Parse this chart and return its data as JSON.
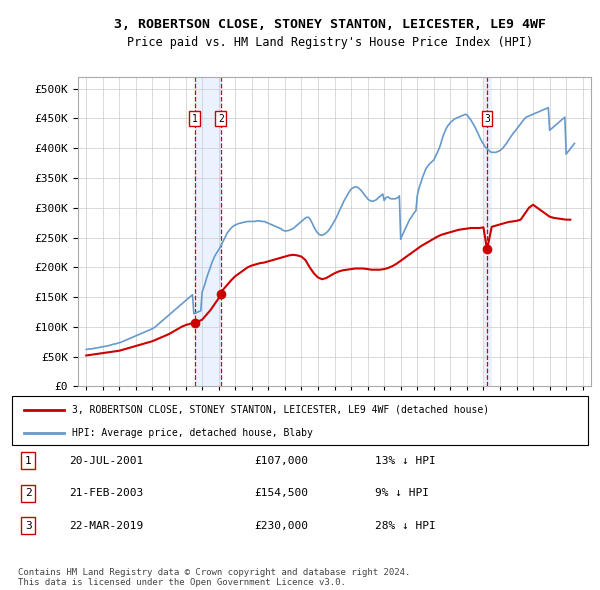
{
  "title": "3, ROBERTSON CLOSE, STONEY STANTON, LEICESTER, LE9 4WF",
  "subtitle": "Price paid vs. HM Land Registry's House Price Index (HPI)",
  "legend_line1": "3, ROBERTSON CLOSE, STONEY STANTON, LEICESTER, LE9 4WF (detached house)",
  "legend_line2": "HPI: Average price, detached house, Blaby",
  "footnote": "Contains HM Land Registry data © Crown copyright and database right 2024.\nThis data is licensed under the Open Government Licence v3.0.",
  "transactions": [
    {
      "num": 1,
      "date": "20-JUL-2001",
      "price": 107000,
      "hpi_diff": "13% ↓ HPI",
      "year": 2001.55
    },
    {
      "num": 2,
      "date": "21-FEB-2003",
      "price": 154500,
      "hpi_diff": "9% ↓ HPI",
      "year": 2003.13
    },
    {
      "num": 3,
      "date": "22-MAR-2019",
      "price": 230000,
      "hpi_diff": "28% ↓ HPI",
      "year": 2019.22
    }
  ],
  "hpi_color": "#6699cc",
  "price_color": "#cc0000",
  "vline_color": "#cc0000",
  "highlight_color": "#cce0ff",
  "grid_color": "#cccccc",
  "bg_color": "#ffffff",
  "ylim": [
    0,
    520000
  ],
  "yticks": [
    0,
    50000,
    100000,
    150000,
    200000,
    250000,
    300000,
    350000,
    400000,
    450000,
    500000
  ],
  "xlim_start": 1994.5,
  "xlim_end": 2025.5,
  "xticks": [
    1995,
    1996,
    1997,
    1998,
    1999,
    2000,
    2001,
    2002,
    2003,
    2004,
    2005,
    2006,
    2007,
    2008,
    2009,
    2010,
    2011,
    2012,
    2013,
    2014,
    2015,
    2016,
    2017,
    2018,
    2019,
    2020,
    2021,
    2022,
    2023,
    2024,
    2025
  ],
  "hpi_years": [
    1995.0,
    1995.08,
    1995.17,
    1995.25,
    1995.33,
    1995.42,
    1995.5,
    1995.58,
    1995.67,
    1995.75,
    1995.83,
    1995.92,
    1996.0,
    1996.08,
    1996.17,
    1996.25,
    1996.33,
    1996.42,
    1996.5,
    1996.58,
    1996.67,
    1996.75,
    1996.83,
    1996.92,
    1997.0,
    1997.08,
    1997.17,
    1997.25,
    1997.33,
    1997.42,
    1997.5,
    1997.58,
    1997.67,
    1997.75,
    1997.83,
    1997.92,
    1998.0,
    1998.08,
    1998.17,
    1998.25,
    1998.33,
    1998.42,
    1998.5,
    1998.58,
    1998.67,
    1998.75,
    1998.83,
    1998.92,
    1999.0,
    1999.08,
    1999.17,
    1999.25,
    1999.33,
    1999.42,
    1999.5,
    1999.58,
    1999.67,
    1999.75,
    1999.83,
    1999.92,
    2000.0,
    2000.08,
    2000.17,
    2000.25,
    2000.33,
    2000.42,
    2000.5,
    2000.58,
    2000.67,
    2000.75,
    2000.83,
    2000.92,
    2001.0,
    2001.08,
    2001.17,
    2001.25,
    2001.33,
    2001.42,
    2001.5,
    2001.58,
    2001.67,
    2001.75,
    2001.83,
    2001.92,
    2002.0,
    2002.08,
    2002.17,
    2002.25,
    2002.33,
    2002.42,
    2002.5,
    2002.58,
    2002.67,
    2002.75,
    2002.83,
    2002.92,
    2003.0,
    2003.08,
    2003.17,
    2003.25,
    2003.33,
    2003.42,
    2003.5,
    2003.58,
    2003.67,
    2003.75,
    2003.83,
    2003.92,
    2004.0,
    2004.08,
    2004.17,
    2004.25,
    2004.33,
    2004.42,
    2004.5,
    2004.58,
    2004.67,
    2004.75,
    2004.83,
    2004.92,
    2005.0,
    2005.08,
    2005.17,
    2005.25,
    2005.33,
    2005.42,
    2005.5,
    2005.58,
    2005.67,
    2005.75,
    2005.83,
    2005.92,
    2006.0,
    2006.08,
    2006.17,
    2006.25,
    2006.33,
    2006.42,
    2006.5,
    2006.58,
    2006.67,
    2006.75,
    2006.83,
    2006.92,
    2007.0,
    2007.08,
    2007.17,
    2007.25,
    2007.33,
    2007.42,
    2007.5,
    2007.58,
    2007.67,
    2007.75,
    2007.83,
    2007.92,
    2008.0,
    2008.08,
    2008.17,
    2008.25,
    2008.33,
    2008.42,
    2008.5,
    2008.58,
    2008.67,
    2008.75,
    2008.83,
    2008.92,
    2009.0,
    2009.08,
    2009.17,
    2009.25,
    2009.33,
    2009.42,
    2009.5,
    2009.58,
    2009.67,
    2009.75,
    2009.83,
    2009.92,
    2010.0,
    2010.08,
    2010.17,
    2010.25,
    2010.33,
    2010.42,
    2010.5,
    2010.58,
    2010.67,
    2010.75,
    2010.83,
    2010.92,
    2011.0,
    2011.08,
    2011.17,
    2011.25,
    2011.33,
    2011.42,
    2011.5,
    2011.58,
    2011.67,
    2011.75,
    2011.83,
    2011.92,
    2012.0,
    2012.08,
    2012.17,
    2012.25,
    2012.33,
    2012.42,
    2012.5,
    2012.58,
    2012.67,
    2012.75,
    2012.83,
    2012.92,
    2013.0,
    2013.08,
    2013.17,
    2013.25,
    2013.33,
    2013.42,
    2013.5,
    2013.58,
    2013.67,
    2013.75,
    2013.83,
    2013.92,
    2014.0,
    2014.08,
    2014.17,
    2014.25,
    2014.33,
    2014.42,
    2014.5,
    2014.58,
    2014.67,
    2014.75,
    2014.83,
    2014.92,
    2015.0,
    2015.08,
    2015.17,
    2015.25,
    2015.33,
    2015.42,
    2015.5,
    2015.58,
    2015.67,
    2015.75,
    2015.83,
    2015.92,
    2016.0,
    2016.08,
    2016.17,
    2016.25,
    2016.33,
    2016.42,
    2016.5,
    2016.58,
    2016.67,
    2016.75,
    2016.83,
    2016.92,
    2017.0,
    2017.08,
    2017.17,
    2017.25,
    2017.33,
    2017.42,
    2017.5,
    2017.58,
    2017.67,
    2017.75,
    2017.83,
    2017.92,
    2018.0,
    2018.08,
    2018.17,
    2018.25,
    2018.33,
    2018.42,
    2018.5,
    2018.58,
    2018.67,
    2018.75,
    2018.83,
    2018.92,
    2019.0,
    2019.08,
    2019.17,
    2019.25,
    2019.33,
    2019.42,
    2019.5,
    2019.58,
    2019.67,
    2019.75,
    2019.83,
    2019.92,
    2020.0,
    2020.08,
    2020.17,
    2020.25,
    2020.33,
    2020.42,
    2020.5,
    2020.58,
    2020.67,
    2020.75,
    2020.83,
    2020.92,
    2021.0,
    2021.08,
    2021.17,
    2021.25,
    2021.33,
    2021.42,
    2021.5,
    2021.58,
    2021.67,
    2021.75,
    2021.83,
    2021.92,
    2022.0,
    2022.08,
    2022.17,
    2022.25,
    2022.33,
    2022.42,
    2022.5,
    2022.58,
    2022.67,
    2022.75,
    2022.83,
    2022.92,
    2023.0,
    2023.08,
    2023.17,
    2023.25,
    2023.33,
    2023.42,
    2023.5,
    2023.58,
    2023.67,
    2023.75,
    2023.83,
    2023.92,
    2024.0,
    2024.08,
    2024.17,
    2024.25,
    2024.33,
    2024.42,
    2024.5
  ],
  "hpi_values": [
    62000,
    62500,
    63000,
    62800,
    63200,
    63500,
    64000,
    64500,
    65000,
    65300,
    65800,
    66200,
    66800,
    67000,
    67500,
    68000,
    68500,
    69000,
    69800,
    70500,
    71000,
    71500,
    72000,
    72800,
    73500,
    74000,
    75000,
    76000,
    77000,
    78000,
    79000,
    80000,
    81000,
    82000,
    83000,
    84000,
    85000,
    86000,
    87000,
    88000,
    89000,
    90000,
    91000,
    92000,
    93000,
    94000,
    95000,
    96000,
    97000,
    98500,
    100000,
    102000,
    104000,
    106000,
    108000,
    110000,
    112000,
    114000,
    116000,
    118000,
    120000,
    122000,
    124000,
    126000,
    128000,
    130000,
    132000,
    134000,
    136000,
    138000,
    140000,
    142000,
    144000,
    146000,
    148000,
    150000,
    152000,
    154000,
    122000,
    123000,
    124000,
    125000,
    126000,
    127000,
    158000,
    165000,
    172000,
    180000,
    187000,
    194000,
    200000,
    207000,
    213000,
    218000,
    222000,
    226000,
    229000,
    233000,
    238000,
    243000,
    247000,
    252000,
    257000,
    260000,
    263000,
    266000,
    268000,
    270000,
    271000,
    272000,
    273000,
    274000,
    274000,
    275000,
    275500,
    276000,
    276500,
    277000,
    277000,
    277000,
    277000,
    277000,
    277000,
    277500,
    278000,
    278000,
    278000,
    277000,
    277000,
    277000,
    276000,
    275000,
    274000,
    273000,
    272000,
    271000,
    270000,
    269000,
    268000,
    267000,
    266000,
    265000,
    263000,
    262000,
    261000,
    261000,
    261500,
    262000,
    263000,
    264000,
    265000,
    267000,
    269000,
    271000,
    273000,
    275000,
    277000,
    279000,
    281000,
    283000,
    284000,
    284000,
    282000,
    278000,
    273000,
    268000,
    264000,
    260000,
    257000,
    255000,
    254000,
    254000,
    255000,
    256000,
    258000,
    260000,
    263000,
    266000,
    270000,
    274000,
    278000,
    282000,
    287000,
    292000,
    297000,
    302000,
    307000,
    312000,
    316000,
    320000,
    324000,
    328000,
    331000,
    333000,
    334000,
    335000,
    335000,
    334000,
    332000,
    330000,
    327000,
    324000,
    321000,
    318000,
    315000,
    313000,
    312000,
    311000,
    311000,
    312000,
    313000,
    315000,
    317000,
    319000,
    321000,
    323000,
    312000,
    316000,
    318000,
    318000,
    316000,
    315000,
    315000,
    315000,
    315000,
    316000,
    317000,
    320000,
    247000,
    253000,
    258000,
    263000,
    268000,
    273000,
    278000,
    282000,
    285000,
    289000,
    292000,
    295000,
    320000,
    330000,
    338000,
    345000,
    352000,
    358000,
    364000,
    368000,
    371000,
    374000,
    376000,
    378000,
    380000,
    385000,
    390000,
    395000,
    400000,
    407000,
    415000,
    422000,
    428000,
    433000,
    437000,
    440000,
    443000,
    445000,
    447000,
    449000,
    450000,
    451000,
    452000,
    453000,
    454000,
    455000,
    456000,
    457000,
    456000,
    453000,
    450000,
    447000,
    443000,
    439000,
    435000,
    430000,
    425000,
    420000,
    415000,
    411000,
    407000,
    403000,
    400000,
    398000,
    396000,
    394000,
    393000,
    393000,
    393000,
    393000,
    394000,
    395000,
    396000,
    398000,
    400000,
    403000,
    406000,
    409000,
    413000,
    416000,
    420000,
    423000,
    426000,
    429000,
    432000,
    435000,
    438000,
    441000,
    444000,
    447000,
    450000,
    452000,
    453000,
    454000,
    455000,
    456000,
    457000,
    458000,
    459000,
    460000,
    461000,
    462000,
    463000,
    464000,
    465000,
    466000,
    467000,
    468000,
    430000,
    432000,
    434000,
    436000,
    438000,
    440000,
    442000,
    444000,
    446000,
    448000,
    450000,
    452000,
    390000,
    393000,
    396000,
    399000,
    402000,
    405000,
    408000,
    411000,
    414000,
    417000,
    420000,
    423000,
    390000,
    395000,
    398000,
    402000,
    406000,
    410000,
    414000
  ],
  "price_years": [
    1995.0,
    1995.25,
    1995.5,
    1995.75,
    1996.0,
    1996.25,
    1996.5,
    1996.75,
    1997.0,
    1997.25,
    1997.5,
    1997.75,
    1998.0,
    1998.25,
    1998.5,
    1998.75,
    1999.0,
    1999.25,
    1999.5,
    1999.75,
    2000.0,
    2000.25,
    2000.5,
    2000.75,
    2001.0,
    2001.25,
    2001.55,
    2001.75,
    2002.0,
    2002.25,
    2002.5,
    2002.75,
    2003.0,
    2003.13,
    2003.25,
    2003.5,
    2003.75,
    2004.0,
    2004.25,
    2004.5,
    2004.75,
    2005.0,
    2005.25,
    2005.5,
    2005.75,
    2006.0,
    2006.25,
    2006.5,
    2006.75,
    2007.0,
    2007.25,
    2007.5,
    2007.75,
    2008.0,
    2008.25,
    2008.5,
    2008.75,
    2009.0,
    2009.25,
    2009.5,
    2009.75,
    2010.0,
    2010.25,
    2010.5,
    2010.75,
    2011.0,
    2011.25,
    2011.5,
    2011.75,
    2012.0,
    2012.25,
    2012.5,
    2012.75,
    2013.0,
    2013.25,
    2013.5,
    2013.75,
    2014.0,
    2014.25,
    2014.5,
    2014.75,
    2015.0,
    2015.25,
    2015.5,
    2015.75,
    2016.0,
    2016.25,
    2016.5,
    2016.75,
    2017.0,
    2017.25,
    2017.5,
    2017.75,
    2018.0,
    2018.25,
    2018.5,
    2018.75,
    2019.0,
    2019.22,
    2019.5,
    2019.75,
    2020.0,
    2020.25,
    2020.5,
    2020.75,
    2021.0,
    2021.25,
    2021.5,
    2021.75,
    2022.0,
    2022.25,
    2022.5,
    2022.75,
    2023.0,
    2023.25,
    2023.5,
    2023.75,
    2024.0,
    2024.25
  ],
  "price_values": [
    52000,
    53000,
    54000,
    55000,
    56000,
    57000,
    58000,
    59000,
    60000,
    62000,
    64000,
    66000,
    68000,
    70000,
    72000,
    74000,
    76000,
    79000,
    82000,
    85000,
    88000,
    92000,
    96000,
    100000,
    103000,
    105000,
    107000,
    109000,
    112000,
    120000,
    128000,
    138000,
    148000,
    154500,
    162000,
    170000,
    178000,
    185000,
    190000,
    195000,
    200000,
    203000,
    205000,
    207000,
    208000,
    210000,
    212000,
    214000,
    216000,
    218000,
    220000,
    221000,
    220000,
    218000,
    212000,
    200000,
    190000,
    183000,
    180000,
    182000,
    186000,
    190000,
    193000,
    195000,
    196000,
    197000,
    198000,
    198000,
    198000,
    197000,
    196000,
    196000,
    196000,
    197000,
    199000,
    202000,
    206000,
    211000,
    216000,
    221000,
    226000,
    231000,
    236000,
    240000,
    244000,
    248000,
    252000,
    255000,
    257000,
    259000,
    261000,
    263000,
    264000,
    265000,
    266000,
    266000,
    266000,
    267000,
    230000,
    268000,
    270000,
    272000,
    274000,
    276000,
    277000,
    278000,
    280000,
    290000,
    300000,
    305000,
    300000,
    295000,
    290000,
    285000,
    283000,
    282000,
    281000,
    280000,
    280000
  ]
}
